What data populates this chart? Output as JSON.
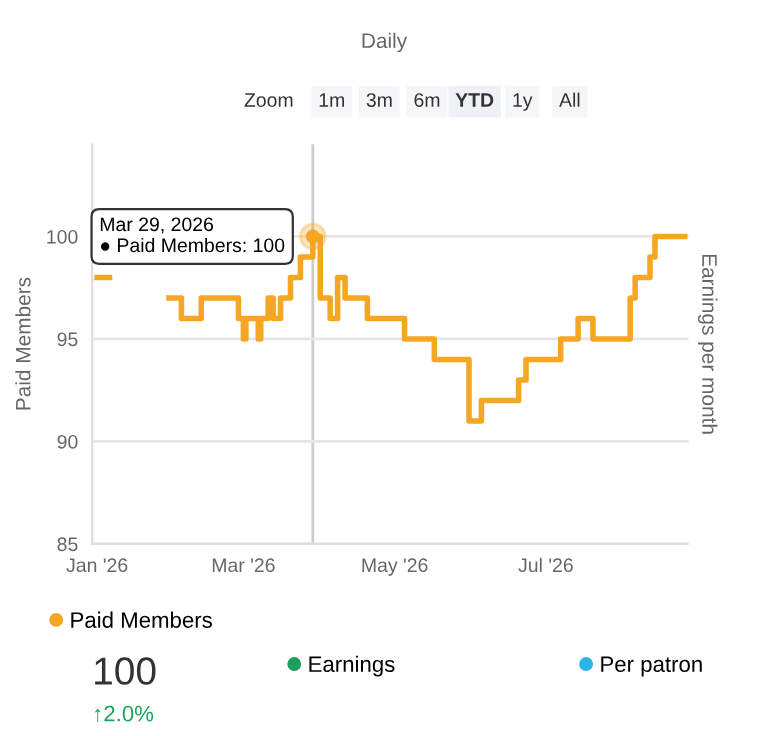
{
  "chart_data": {
    "type": "step",
    "subtitle": "Daily",
    "ylabel": "Paid Members",
    "y2label": "Earnings per month",
    "x": [
      "2026-01-01",
      "2026-01-06",
      "2026-01-30",
      "2026-02-04",
      "2026-02-12",
      "2026-02-27",
      "2026-03-01",
      "2026-03-02",
      "2026-03-07",
      "2026-03-08",
      "2026-03-11",
      "2026-03-13",
      "2026-03-16",
      "2026-03-20",
      "2026-03-24",
      "2026-03-29",
      "2026-04-01",
      "2026-04-05",
      "2026-04-08",
      "2026-04-11",
      "2026-04-20",
      "2026-05-05",
      "2026-05-17",
      "2026-05-31",
      "2026-06-05",
      "2026-06-20",
      "2026-06-23",
      "2026-07-07",
      "2026-07-14",
      "2026-07-20",
      "2026-08-04",
      "2026-08-06",
      "2026-08-12",
      "2026-08-14",
      "2026-08-26"
    ],
    "series": [
      {
        "name": "Paid Members",
        "color": "#f5a623",
        "values": [
          98,
          null,
          97,
          96,
          97,
          96,
          95,
          96,
          95,
          96,
          97,
          96,
          97,
          98,
          99,
          100,
          97,
          96,
          98,
          97,
          96,
          95,
          94,
          91,
          92,
          93,
          94,
          95,
          96,
          95,
          97,
          98,
          99,
          100,
          100
        ]
      },
      {
        "name": "Earnings",
        "color": "#1e9e5a",
        "values": [
          null,
          null,
          null,
          null,
          null,
          null,
          null,
          null,
          null,
          null,
          null,
          null,
          null,
          null,
          null,
          null,
          null,
          null,
          null,
          null,
          null,
          null,
          null,
          null,
          null,
          null,
          null,
          null,
          null,
          null,
          null,
          null,
          null,
          null,
          null
        ]
      },
      {
        "name": "Per patron",
        "color": "#29b6e6",
        "values": [
          null,
          null,
          null,
          null,
          null,
          null,
          null,
          null,
          null,
          null,
          null,
          null,
          null,
          null,
          null,
          null,
          null,
          null,
          null,
          null,
          null,
          null,
          null,
          null,
          null,
          null,
          null,
          null,
          null,
          null,
          null,
          null,
          null,
          null,
          null
        ]
      }
    ],
    "xlim": [
      "2025-12-30",
      "2026-08-28"
    ],
    "xticks": [
      {
        "value": "2026-01-01",
        "label": "Jan '26"
      },
      {
        "value": "2026-03-01",
        "label": "Mar '26"
      },
      {
        "value": "2026-05-01",
        "label": "May '26"
      },
      {
        "value": "2026-07-01",
        "label": "Jul '26"
      }
    ],
    "ylim": [
      85,
      104.5
    ],
    "yticks": [
      85,
      90,
      95,
      100
    ],
    "grid": "y",
    "legend": "bottom",
    "marker": "none",
    "line_style": "solid",
    "ref_lines": [
      {
        "axis": "x",
        "value": "2026-03-29",
        "label": null,
        "color": "#cccccc"
      }
    ],
    "annotations": [
      {
        "text": "Mar 29, 2026\n● Paid Members: 100",
        "x": "2026-03-29",
        "y": 100
      },
      "Zoom",
      "1m",
      "3m",
      "6m",
      "YTD",
      "1y",
      "All",
      "100",
      "↑2.0%"
    ]
  }
}
